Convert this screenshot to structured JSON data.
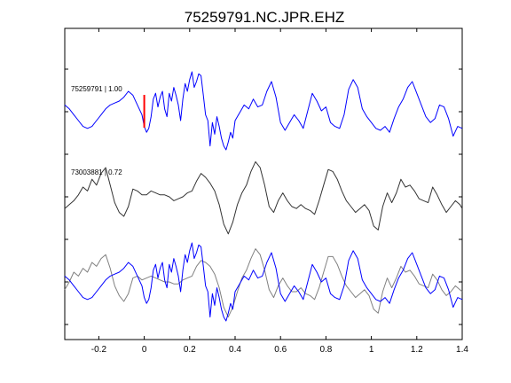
{
  "chart_data": {
    "type": "line",
    "title": "75259791.NC.JPR.EHZ",
    "xlabel": "",
    "ylabel": "",
    "xlim": [
      -0.35,
      1.4
    ],
    "xticks": [
      -0.2,
      0,
      0.2,
      0.4,
      0.6,
      0.8,
      1,
      1.2,
      1.4
    ],
    "xtick_labels": [
      "-0.2",
      "0",
      "0.2",
      "0.4",
      "0.6",
      "0.8",
      "1",
      "1.2",
      "1.4"
    ],
    "grid": false,
    "legend": "none",
    "pick_marker": {
      "x": 0,
      "color": "#ff0000"
    },
    "traces": [
      {
        "label": "75259791 | 1.00",
        "color": "#0000ff",
        "panel": "top",
        "x": [
          -0.35,
          -0.33,
          -0.31,
          -0.29,
          -0.27,
          -0.25,
          -0.23,
          -0.21,
          -0.19,
          -0.17,
          -0.15,
          -0.13,
          -0.11,
          -0.09,
          -0.07,
          -0.05,
          -0.03,
          -0.01,
          0.0,
          0.01,
          0.02,
          0.03,
          0.04,
          0.05,
          0.06,
          0.07,
          0.08,
          0.09,
          0.1,
          0.11,
          0.12,
          0.13,
          0.14,
          0.15,
          0.16,
          0.17,
          0.18,
          0.19,
          0.2,
          0.21,
          0.22,
          0.23,
          0.24,
          0.25,
          0.26,
          0.27,
          0.28,
          0.29,
          0.3,
          0.31,
          0.32,
          0.33,
          0.34,
          0.35,
          0.36,
          0.37,
          0.38,
          0.39,
          0.4,
          0.42,
          0.44,
          0.46,
          0.48,
          0.5,
          0.52,
          0.54,
          0.56,
          0.58,
          0.6,
          0.62,
          0.64,
          0.66,
          0.68,
          0.7,
          0.72,
          0.74,
          0.76,
          0.78,
          0.8,
          0.82,
          0.84,
          0.86,
          0.88,
          0.9,
          0.92,
          0.94,
          0.96,
          0.98,
          1.0,
          1.02,
          1.04,
          1.06,
          1.08,
          1.1,
          1.12,
          1.14,
          1.16,
          1.18,
          1.2,
          1.22,
          1.24,
          1.26,
          1.28,
          1.3,
          1.32,
          1.34,
          1.36,
          1.38,
          1.4
        ],
        "y": [
          0.3,
          0.1,
          -0.2,
          -0.5,
          -0.8,
          -0.9,
          -0.8,
          -0.5,
          -0.2,
          0.1,
          0.3,
          0.4,
          0.5,
          0.7,
          1.0,
          0.8,
          0.3,
          -0.2,
          -0.8,
          -1.1,
          -0.9,
          -0.3,
          0.6,
          0.9,
          0.2,
          0.7,
          1.0,
          0.1,
          -0.3,
          0.9,
          0.5,
          1.2,
          0.8,
          0.3,
          -0.5,
          0.6,
          1.4,
          1.0,
          1.6,
          2.0,
          1.2,
          1.5,
          1.9,
          1.8,
          0.8,
          -0.2,
          -0.5,
          -1.8,
          -0.6,
          -1.2,
          -0.3,
          -0.8,
          -1.4,
          -1.8,
          -2.0,
          -1.6,
          -1.1,
          -1.4,
          -0.5,
          -0.1,
          0.3,
          0.1,
          0.6,
          0.2,
          0.3,
          1.0,
          1.5,
          0.7,
          -0.6,
          -1.0,
          -0.6,
          -0.2,
          -0.5,
          -0.9,
          0.0,
          0.9,
          0.5,
          0.0,
          0.2,
          -0.6,
          -0.8,
          -0.9,
          -0.2,
          1.1,
          1.6,
          1.2,
          0.1,
          -0.3,
          -0.6,
          -0.9,
          -1.0,
          -0.8,
          -1.1,
          -0.4,
          0.2,
          0.6,
          1.2,
          1.5,
          0.9,
          0.3,
          -0.3,
          -0.6,
          -0.4,
          0.3,
          0.2,
          -0.4,
          -1.3,
          -0.8,
          -0.9
        ]
      },
      {
        "label": "73003881 | 0.72",
        "color": "#333333",
        "panel": "middle",
        "x": [
          -0.35,
          -0.33,
          -0.31,
          -0.29,
          -0.27,
          -0.25,
          -0.23,
          -0.21,
          -0.19,
          -0.17,
          -0.15,
          -0.13,
          -0.11,
          -0.09,
          -0.07,
          -0.05,
          -0.03,
          -0.01,
          0.01,
          0.03,
          0.05,
          0.07,
          0.09,
          0.11,
          0.13,
          0.15,
          0.17,
          0.19,
          0.21,
          0.23,
          0.25,
          0.27,
          0.29,
          0.31,
          0.33,
          0.35,
          0.37,
          0.39,
          0.41,
          0.43,
          0.45,
          0.47,
          0.49,
          0.51,
          0.53,
          0.55,
          0.57,
          0.59,
          0.61,
          0.63,
          0.65,
          0.67,
          0.69,
          0.71,
          0.73,
          0.75,
          0.77,
          0.79,
          0.81,
          0.83,
          0.85,
          0.87,
          0.89,
          0.91,
          0.93,
          0.95,
          0.97,
          0.99,
          1.01,
          1.03,
          1.05,
          1.07,
          1.09,
          1.11,
          1.13,
          1.15,
          1.17,
          1.19,
          1.21,
          1.23,
          1.25,
          1.27,
          1.29,
          1.31,
          1.33,
          1.35,
          1.37,
          1.39,
          1.4
        ],
        "y": [
          -0.6,
          -0.4,
          -0.2,
          0.1,
          0.5,
          0.3,
          0.9,
          0.6,
          1.2,
          1.5,
          0.6,
          -0.3,
          -0.8,
          -1.0,
          -0.5,
          0.4,
          0.3,
          0.1,
          0.1,
          0.3,
          0.2,
          0.1,
          0.1,
          0.0,
          -0.2,
          -0.1,
          0.0,
          0.2,
          0.3,
          0.8,
          1.2,
          1.0,
          0.7,
          0.3,
          -0.4,
          -1.4,
          -1.9,
          -1.3,
          -0.4,
          0.2,
          0.6,
          1.3,
          1.8,
          1.5,
          0.6,
          -0.5,
          -0.8,
          -0.2,
          0.2,
          -0.2,
          -0.5,
          -0.6,
          -0.4,
          -0.6,
          -0.7,
          -0.9,
          -0.2,
          0.6,
          1.4,
          1.3,
          0.9,
          0.3,
          -0.2,
          -0.5,
          -0.8,
          -0.6,
          -0.4,
          -0.7,
          -1.5,
          -1.7,
          -0.5,
          0.2,
          -0.3,
          0.2,
          0.9,
          0.5,
          0.6,
          0.3,
          -0.1,
          -0.2,
          -0.3,
          0.5,
          0.1,
          -0.4,
          -0.8,
          -0.5,
          -0.2,
          -0.4,
          -0.6
        ]
      },
      {
        "label": "",
        "color": "#808080",
        "panel": "bottom",
        "x": [
          -0.35,
          -0.33,
          -0.31,
          -0.29,
          -0.27,
          -0.25,
          -0.23,
          -0.21,
          -0.19,
          -0.17,
          -0.15,
          -0.13,
          -0.11,
          -0.09,
          -0.07,
          -0.05,
          -0.03,
          -0.01,
          0.01,
          0.03,
          0.05,
          0.07,
          0.09,
          0.11,
          0.13,
          0.15,
          0.17,
          0.19,
          0.21,
          0.23,
          0.25,
          0.27,
          0.29,
          0.31,
          0.33,
          0.35,
          0.37,
          0.39,
          0.41,
          0.43,
          0.45,
          0.47,
          0.49,
          0.51,
          0.53,
          0.55,
          0.57,
          0.59,
          0.61,
          0.63,
          0.65,
          0.67,
          0.69,
          0.71,
          0.73,
          0.75,
          0.77,
          0.79,
          0.81,
          0.83,
          0.85,
          0.87,
          0.89,
          0.91,
          0.93,
          0.95,
          0.97,
          0.99,
          1.01,
          1.03,
          1.05,
          1.07,
          1.09,
          1.11,
          1.13,
          1.15,
          1.17,
          1.19,
          1.21,
          1.23,
          1.25,
          1.27,
          1.29,
          1.31,
          1.33,
          1.35,
          1.37,
          1.39,
          1.4
        ],
        "y": [
          -0.4,
          0.0,
          0.5,
          0.3,
          0.7,
          0.5,
          1.0,
          0.8,
          1.2,
          1.4,
          0.7,
          -0.2,
          -0.7,
          -1.0,
          -0.6,
          0.2,
          0.3,
          0.1,
          0.2,
          0.3,
          0.2,
          0.1,
          0.0,
          0.0,
          -0.1,
          -0.1,
          0.1,
          0.2,
          0.3,
          0.8,
          1.1,
          1.0,
          0.8,
          0.4,
          -0.3,
          -1.3,
          -1.8,
          -1.3,
          -0.5,
          0.2,
          0.6,
          1.2,
          1.7,
          1.4,
          0.6,
          -0.4,
          -0.8,
          -0.2,
          0.2,
          -0.2,
          -0.5,
          -0.5,
          -0.3,
          -0.6,
          -0.7,
          -0.9,
          -0.3,
          0.5,
          1.3,
          1.3,
          0.9,
          0.3,
          -0.2,
          -0.5,
          -0.8,
          -0.6,
          -0.4,
          -0.7,
          -1.4,
          -1.6,
          -0.5,
          0.2,
          -0.3,
          0.2,
          0.8,
          0.5,
          0.6,
          0.3,
          -0.1,
          -0.2,
          -0.3,
          0.4,
          0.1,
          -0.4,
          -0.7,
          -0.5,
          -0.2,
          -0.4,
          -0.5
        ]
      },
      {
        "label": "",
        "color": "#0000ff",
        "panel": "bottom",
        "x": [
          -0.35,
          -0.33,
          -0.31,
          -0.29,
          -0.27,
          -0.25,
          -0.23,
          -0.21,
          -0.19,
          -0.17,
          -0.15,
          -0.13,
          -0.11,
          -0.09,
          -0.07,
          -0.05,
          -0.03,
          -0.01,
          0.0,
          0.01,
          0.02,
          0.03,
          0.04,
          0.05,
          0.06,
          0.07,
          0.08,
          0.09,
          0.1,
          0.11,
          0.12,
          0.13,
          0.14,
          0.15,
          0.16,
          0.17,
          0.18,
          0.19,
          0.2,
          0.21,
          0.22,
          0.23,
          0.24,
          0.25,
          0.26,
          0.27,
          0.28,
          0.29,
          0.3,
          0.31,
          0.32,
          0.33,
          0.34,
          0.35,
          0.36,
          0.37,
          0.38,
          0.39,
          0.4,
          0.42,
          0.44,
          0.46,
          0.48,
          0.5,
          0.52,
          0.54,
          0.56,
          0.58,
          0.6,
          0.62,
          0.64,
          0.66,
          0.68,
          0.7,
          0.72,
          0.74,
          0.76,
          0.78,
          0.8,
          0.82,
          0.84,
          0.86,
          0.88,
          0.9,
          0.92,
          0.94,
          0.96,
          0.98,
          1.0,
          1.02,
          1.04,
          1.06,
          1.08,
          1.1,
          1.12,
          1.14,
          1.16,
          1.18,
          1.2,
          1.22,
          1.24,
          1.26,
          1.28,
          1.3,
          1.32,
          1.34,
          1.36,
          1.38,
          1.4
        ],
        "y": [
          0.3,
          0.1,
          -0.2,
          -0.5,
          -0.8,
          -0.9,
          -0.8,
          -0.5,
          -0.2,
          0.1,
          0.3,
          0.4,
          0.5,
          0.7,
          1.0,
          0.8,
          0.3,
          -0.2,
          -0.8,
          -1.1,
          -0.9,
          -0.3,
          0.6,
          0.9,
          0.2,
          0.7,
          1.0,
          0.1,
          -0.3,
          0.9,
          0.5,
          1.2,
          0.8,
          0.3,
          -0.5,
          0.6,
          1.4,
          1.0,
          1.6,
          2.0,
          1.2,
          1.5,
          1.9,
          1.8,
          0.8,
          -0.2,
          -0.5,
          -1.8,
          -0.6,
          -1.2,
          -0.3,
          -0.8,
          -1.4,
          -1.8,
          -2.0,
          -1.6,
          -1.1,
          -1.4,
          -0.5,
          -0.1,
          0.3,
          0.1,
          0.6,
          0.2,
          0.3,
          1.0,
          1.5,
          0.7,
          -0.6,
          -1.0,
          -0.6,
          -0.2,
          -0.5,
          -0.9,
          0.0,
          0.9,
          0.5,
          0.0,
          0.2,
          -0.6,
          -0.8,
          -0.9,
          -0.2,
          1.1,
          1.6,
          1.2,
          0.1,
          -0.3,
          -0.6,
          -0.9,
          -1.0,
          -0.8,
          -1.1,
          -0.4,
          0.2,
          0.6,
          1.2,
          1.5,
          0.9,
          0.3,
          -0.3,
          -0.6,
          -0.4,
          0.3,
          0.2,
          -0.4,
          -1.3,
          -0.8,
          -0.9
        ]
      }
    ]
  }
}
